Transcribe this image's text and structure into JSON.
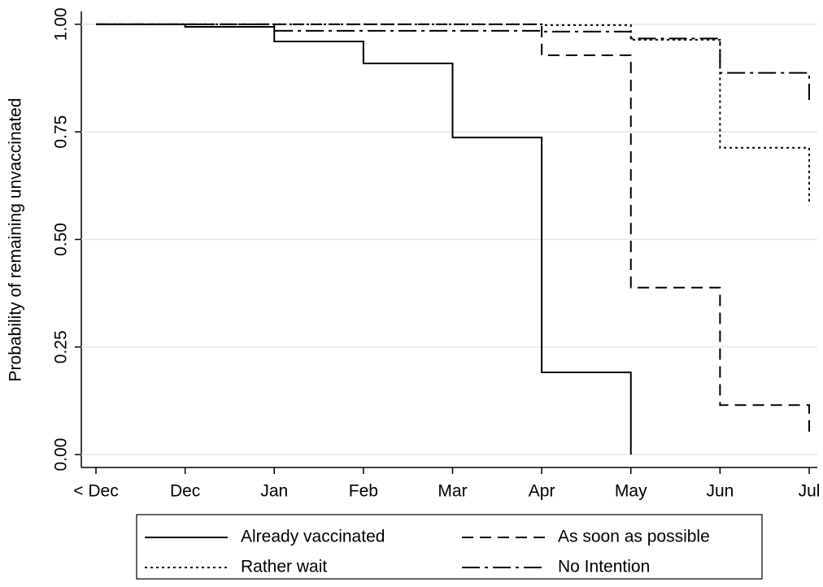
{
  "chart_data": {
    "type": "step",
    "y_label": "Probability of remaining unvaccinated",
    "categories": [
      "< Dec",
      "Dec",
      "Jan",
      "Feb",
      "Mar",
      "Apr",
      "May",
      "Jun",
      "Jul"
    ],
    "series": [
      {
        "name": "Already vaccinated",
        "color": "#000000",
        "line_style": "solid",
        "values": [
          1.0,
          0.994,
          0.96,
          0.909,
          0.737,
          0.191,
          0.0,
          null,
          null
        ]
      },
      {
        "name": "As soon as possible",
        "color": "#000000",
        "line_style": "dashed",
        "values": [
          1.0,
          1.0,
          1.0,
          1.0,
          1.0,
          0.928,
          0.388,
          0.115,
          0.04
        ]
      },
      {
        "name": "Rather wait",
        "color": "#000000",
        "line_style": "dotted",
        "values": [
          1.0,
          1.0,
          1.0,
          1.0,
          1.0,
          0.998,
          0.964,
          0.713,
          0.58
        ]
      },
      {
        "name": "No Intention",
        "color": "#000000",
        "line_style": "dashdot",
        "values": [
          1.0,
          1.0,
          0.985,
          0.985,
          0.985,
          0.983,
          0.967,
          0.887,
          0.824
        ]
      }
    ],
    "ylim": [
      -0.03,
      1.03
    ],
    "yticks": [
      {
        "value": 0,
        "label": "0.00"
      },
      {
        "value": 0.25,
        "label": "0.25"
      },
      {
        "value": 0.5,
        "label": "0.50"
      },
      {
        "value": 0.75,
        "label": "0.75"
      },
      {
        "value": 1,
        "label": "1.00"
      }
    ],
    "grid": true,
    "legend": "bottom"
  }
}
